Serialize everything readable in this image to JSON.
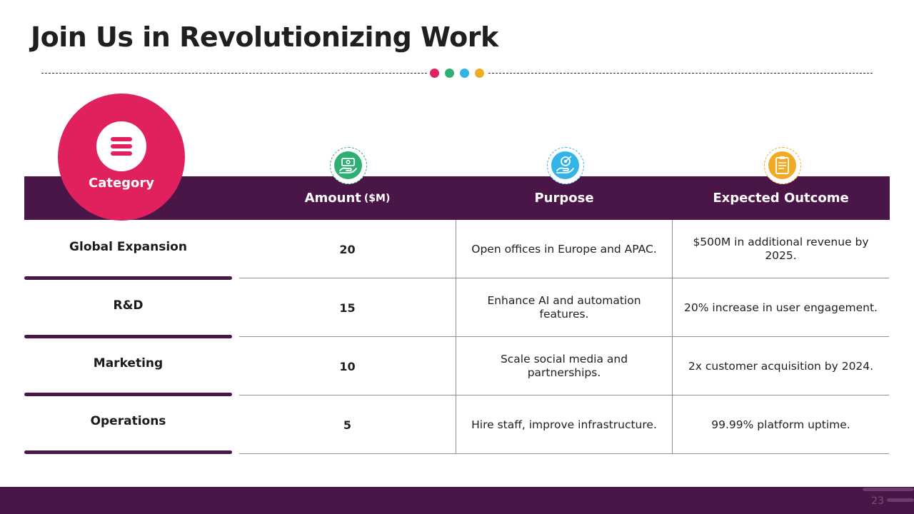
{
  "slide": {
    "title": "Join Us in Revolutionizing Work",
    "page_number": "23"
  },
  "colors": {
    "primary": "#4a1547",
    "accent": "#e0215e",
    "green": "#2fae75",
    "blue": "#33b4e6",
    "yellow": "#efab25"
  },
  "table": {
    "category_header": "Category",
    "category_icon": "list-icon",
    "columns": [
      {
        "label": "Amount",
        "unit": "($M)",
        "icon": "money-hand-icon"
      },
      {
        "label": "Purpose",
        "unit": "",
        "icon": "target-hand-icon"
      },
      {
        "label": "Expected Outcome",
        "unit": "",
        "icon": "clipboard-icon"
      }
    ],
    "rows": [
      {
        "category": "Global Expansion",
        "amount": "20",
        "purpose": "Open offices in Europe and APAC.",
        "outcome": "$500M in additional revenue by 2025."
      },
      {
        "category": "R&D",
        "amount": "15",
        "purpose": "Enhance AI and automation features.",
        "outcome": "20% increase in user engagement."
      },
      {
        "category": "Marketing",
        "amount": "10",
        "purpose": "Scale social media and partnerships.",
        "outcome": "2x customer acquisition by 2024."
      },
      {
        "category": "Operations",
        "amount": "5",
        "purpose": "Hire staff, improve infrastructure.",
        "outcome": "99.99% platform uptime."
      }
    ]
  }
}
